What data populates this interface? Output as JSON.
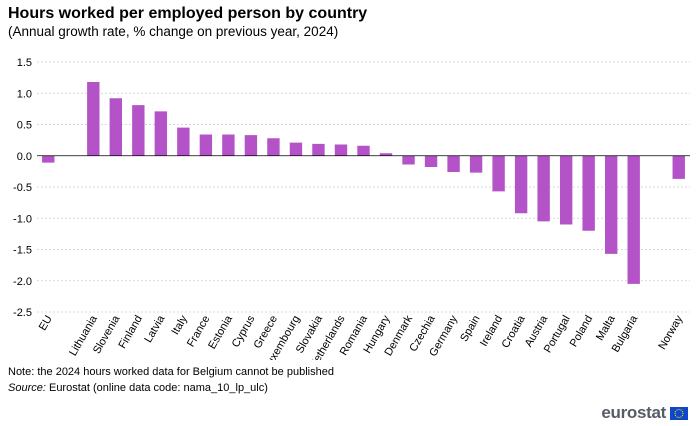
{
  "title": "Hours worked per employed person by country",
  "subtitle": "(Annual growth rate, % change on previous year, 2024)",
  "note": "Note: the 2024 hours worked data for Belgium cannot be published",
  "source_label": "Source:",
  "source_text": " Eurostat (online data code: nama_10_lp_ulc)",
  "logo_text": "eurostat",
  "colors": {
    "bar": "#b452c8",
    "grid": "#cccccc",
    "axis": "#000000",
    "flag": "#0e47cb",
    "star": "#ffde00"
  },
  "chart_data": {
    "type": "bar",
    "title": "Hours worked per employed person by country",
    "subtitle": "(Annual growth rate, % change on previous year, 2024)",
    "xlabel": "",
    "ylabel": "",
    "ylim": [
      -2.5,
      1.5
    ],
    "yticks": [
      1.5,
      1.0,
      0.5,
      0.0,
      -0.5,
      -1.0,
      -1.5,
      -2.0,
      -2.5
    ],
    "ytick_labels": [
      "1.5",
      "1.0",
      "0.5",
      "0.0",
      "-0.5",
      "-1.0",
      "-1.5",
      "-2.0",
      "-2.5"
    ],
    "grid": true,
    "categories": [
      "EU",
      "",
      "Lithuania",
      "Slovenia",
      "Finland",
      "Latvia",
      "Italy",
      "France",
      "Estonia",
      "Cyprus",
      "Greece",
      "Luxembourg",
      "Slovakia",
      "Netherlands",
      "Romania",
      "Hungary",
      "Denmark",
      "Czechia",
      "Germany",
      "Spain",
      "Ireland",
      "Croatia",
      "Austria",
      "Portugal",
      "Poland",
      "Malta",
      "Bulgaria",
      "",
      "Norway"
    ],
    "values": [
      -0.11,
      null,
      1.18,
      0.92,
      0.81,
      0.71,
      0.45,
      0.34,
      0.34,
      0.33,
      0.28,
      0.21,
      0.19,
      0.18,
      0.16,
      0.04,
      -0.14,
      -0.18,
      -0.26,
      -0.27,
      -0.57,
      -0.92,
      -1.05,
      -1.1,
      -1.2,
      -1.57,
      -2.05,
      null,
      -0.37
    ]
  }
}
